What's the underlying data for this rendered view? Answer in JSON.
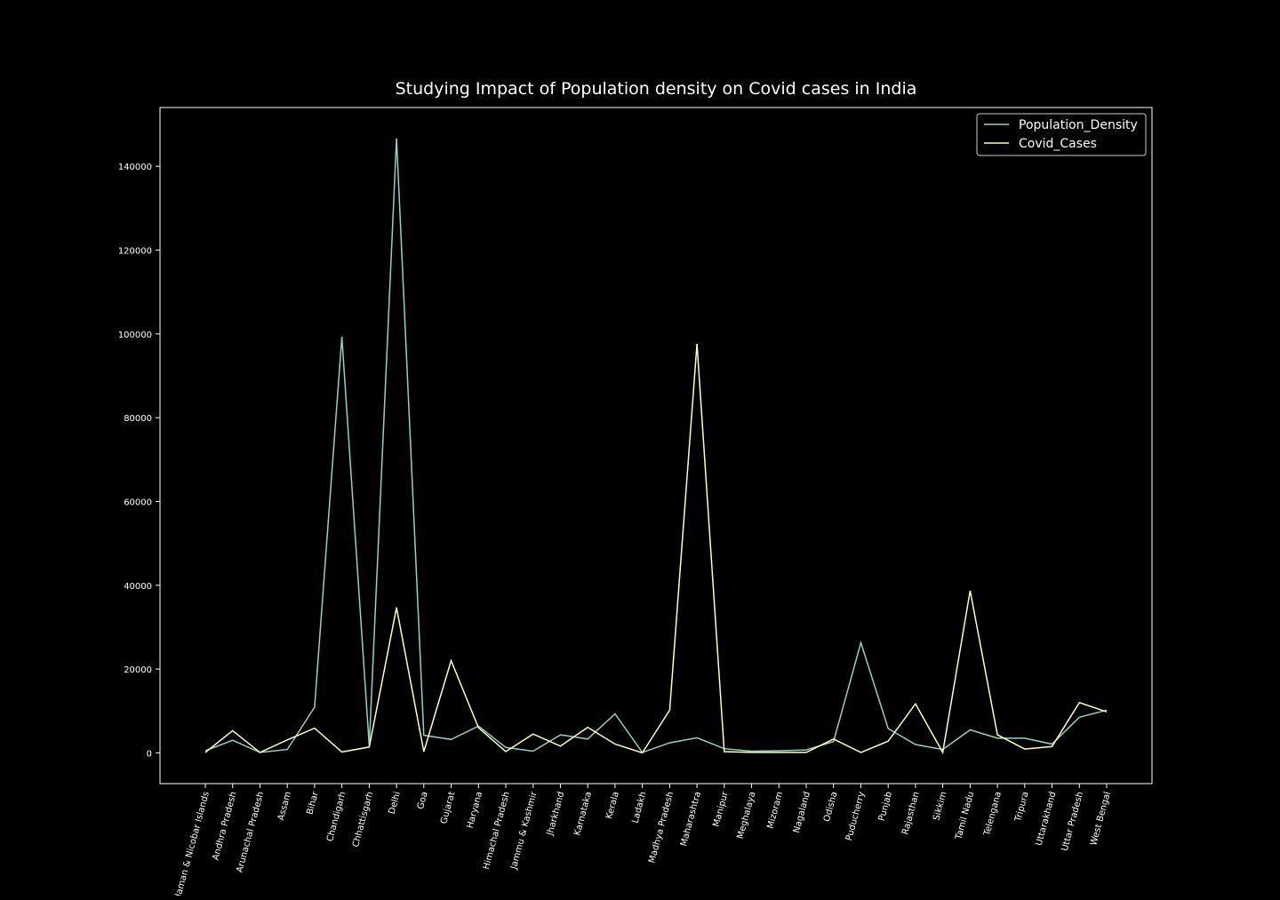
{
  "chart_data": {
    "type": "line",
    "title": "Studying Impact of Population density on Covid cases in India",
    "xlabel": "",
    "ylabel": "",
    "categories": [
      "Andaman & Nicobar Islands",
      "Andhra Pradesh",
      "Arunachal Pradesh",
      "Assam",
      "Bihar",
      "Chandigarh",
      "Chhattisgarh",
      "Delhi",
      "Goa",
      "Gujarat",
      "Haryana",
      "Himachal Pradesh",
      "Jammu & Kashmir",
      "Jharkhand",
      "Karnataka",
      "Kerala",
      "Ladakh",
      "Madhya Pradesh",
      "Maharashtra",
      "Manipur",
      "Meghalaya",
      "Mizoram",
      "Nagaland",
      "Odisha",
      "Puducherry",
      "Punjab",
      "Rajasthan",
      "Sikkim",
      "Tamil Nadu",
      "Telengana",
      "Tripura",
      "Uttarakhand",
      "Uttar Pradesh",
      "West Bengal"
    ],
    "series": [
      {
        "name": "Population_Density",
        "color": "#8dd3c7",
        "values": [
          500,
          3000,
          100,
          800,
          10900,
          99300,
          1700,
          146700,
          4200,
          3200,
          6400,
          1300,
          400,
          4300,
          3300,
          9300,
          100,
          2400,
          3600,
          1000,
          400,
          500,
          700,
          2700,
          26300,
          5800,
          2000,
          800,
          5500,
          3500,
          3500,
          2100,
          8500,
          10200
        ]
      },
      {
        "name": "Covid_Cases",
        "color": "#ffffb3",
        "values": [
          100,
          5300,
          100,
          3100,
          5900,
          200,
          1400,
          34700,
          300,
          22000,
          6000,
          300,
          4500,
          1600,
          6100,
          2100,
          0,
          10200,
          97600,
          300,
          100,
          100,
          100,
          3300,
          100,
          2800,
          11700,
          100,
          38700,
          4300,
          900,
          1500,
          12000,
          9800
        ]
      }
    ],
    "yticks": [
      0,
      20000,
      40000,
      60000,
      80000,
      100000,
      120000,
      140000
    ],
    "ylim": [
      -7340,
      154040
    ],
    "grid": false,
    "legend": "top-right",
    "style": {
      "background": "#000000",
      "axis_color": "#ffffff",
      "text_color": "#ffffff"
    }
  }
}
